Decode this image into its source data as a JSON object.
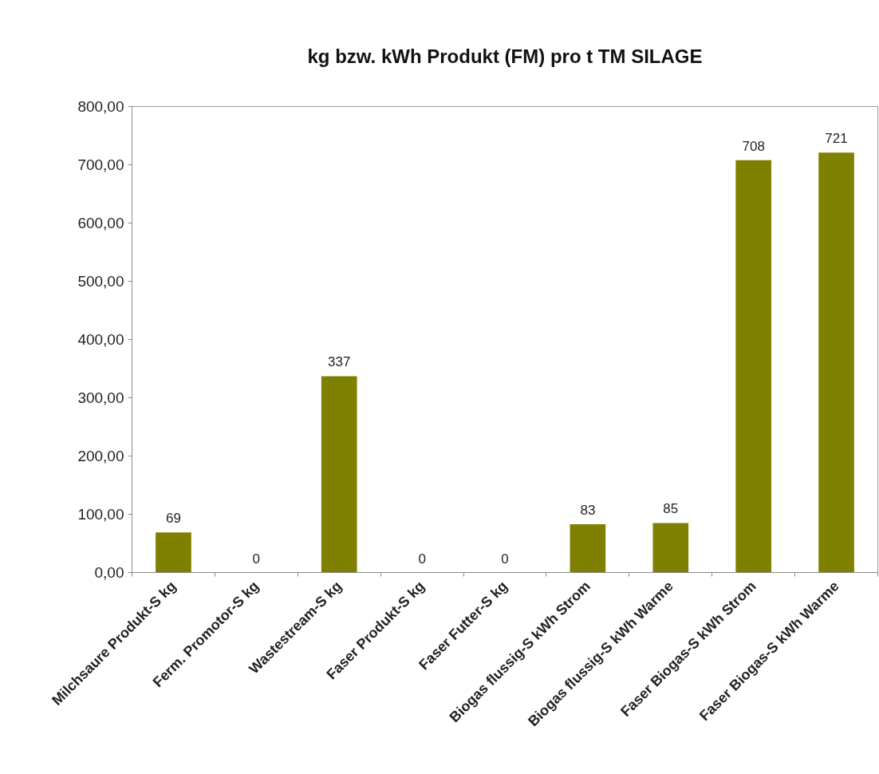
{
  "chart_data": {
    "type": "bar",
    "title": "kg bzw. kWh Produkt (FM) pro t TM SILAGE",
    "categories": [
      "Milchsaure Produkt-S kg",
      "Ferm. Promotor-S kg",
      "Wastestream-S kg",
      "Faser Produkt-S kg",
      "Faser Futter-S kg",
      "Biogas flussig-S kWh Strom",
      "Biogas flussig-S kWh Warme",
      "Faser Biogas-S kWh Strom",
      "Faser Biogas-S kWh Warme"
    ],
    "values": [
      69,
      0,
      337,
      0,
      0,
      83,
      85,
      708,
      721
    ],
    "color": "#808000",
    "ylim": [
      0,
      800
    ],
    "yticks": [
      {
        "value": 0,
        "label": "0,00"
      },
      {
        "value": 100,
        "label": "100,00"
      },
      {
        "value": 200,
        "label": "200,00"
      },
      {
        "value": 300,
        "label": "300,00"
      },
      {
        "value": 400,
        "label": "400,00"
      },
      {
        "value": 500,
        "label": "500,00"
      },
      {
        "value": 600,
        "label": "600,00"
      },
      {
        "value": 700,
        "label": "700,00"
      },
      {
        "value": 800,
        "label": "800,00"
      }
    ],
    "data_labels": true
  }
}
